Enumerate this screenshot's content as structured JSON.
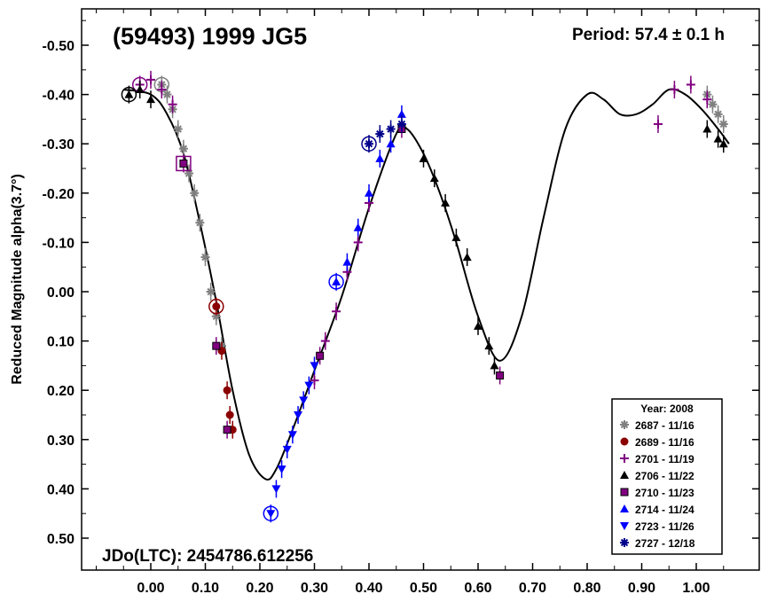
{
  "chart_data": {
    "type": "scatter",
    "title": "(59493) 1999 JG5",
    "period_text": "Period: 57.4 ± 0.1 h",
    "epoch_text": "JDo(LTC): 2454786.612256",
    "ylabel": "Reduced Magnitude alpha(3.7°)",
    "xlabel": "",
    "xlim": [
      -0.1,
      1.08
    ],
    "ylim": [
      -0.55,
      0.51
    ],
    "y_inverted": true,
    "x_ticks": [
      "0.00",
      "0.10",
      "0.20",
      "0.30",
      "0.40",
      "0.50",
      "0.60",
      "0.70",
      "0.80",
      "0.90",
      "1.00"
    ],
    "y_ticks": [
      "-0.50",
      "-0.40",
      "-0.30",
      "-0.20",
      "-0.10",
      "0.00",
      "0.10",
      "0.20",
      "0.30",
      "0.40",
      "0.50"
    ],
    "legend": {
      "title": "Year: 2008",
      "placement": "bottom-right",
      "entries": [
        {
          "label": "2687 - 11/16",
          "color": "#808080",
          "marker": "asterisk"
        },
        {
          "label": "2689 - 11/16",
          "color": "#8b0000",
          "marker": "circle"
        },
        {
          "label": "2701 - 11/19",
          "color": "#800080",
          "marker": "plus"
        },
        {
          "label": "2706 - 11/22",
          "color": "#000000",
          "marker": "triangle"
        },
        {
          "label": "2710 - 11/23",
          "color": "#800080",
          "marker": "square"
        },
        {
          "label": "2714 - 11/24",
          "color": "#0000ff",
          "marker": "triangle"
        },
        {
          "label": "2723 - 11/26",
          "color": "#0000ff",
          "marker": "triangle-down"
        },
        {
          "label": "2727 - 12/18",
          "color": "#00008b",
          "marker": "asterisk"
        }
      ]
    },
    "fit_curve": {
      "x": [
        -0.05,
        0.0,
        0.03,
        0.06,
        0.09,
        0.12,
        0.15,
        0.18,
        0.21,
        0.23,
        0.26,
        0.3,
        0.35,
        0.4,
        0.45,
        0.47,
        0.5,
        0.53,
        0.56,
        0.6,
        0.64,
        0.68,
        0.72,
        0.76,
        0.8,
        0.83,
        0.86,
        0.89,
        0.92,
        0.95,
        0.98,
        1.01,
        1.04,
        1.06
      ],
      "y": [
        -0.41,
        -0.4,
        -0.36,
        -0.28,
        -0.14,
        0.02,
        0.2,
        0.33,
        0.38,
        0.36,
        0.28,
        0.16,
        0.01,
        -0.17,
        -0.32,
        -0.33,
        -0.28,
        -0.2,
        -0.1,
        0.05,
        0.14,
        0.05,
        -0.15,
        -0.33,
        -0.4,
        -0.39,
        -0.36,
        -0.36,
        -0.38,
        -0.41,
        -0.4,
        -0.37,
        -0.33,
        -0.3
      ]
    },
    "series": [
      {
        "name": "2687 - 11/16",
        "x": [
          0.02,
          0.03,
          0.04,
          0.05,
          0.06,
          0.07,
          0.08,
          0.09,
          0.1,
          0.11,
          0.12,
          0.13,
          1.02,
          1.03,
          1.04,
          1.05
        ],
        "y": [
          -0.42,
          -0.4,
          -0.37,
          -0.33,
          -0.29,
          -0.24,
          -0.2,
          -0.14,
          -0.07,
          0.0,
          0.05,
          0.11,
          -0.4,
          -0.38,
          -0.36,
          -0.34
        ]
      },
      {
        "name": "2689 - 11/16",
        "x": [
          0.12,
          0.13,
          0.14,
          0.145,
          0.15
        ],
        "y": [
          0.03,
          0.12,
          0.2,
          0.25,
          0.28
        ]
      },
      {
        "name": "2701 - 11/19",
        "x": [
          -0.02,
          0.0,
          0.02,
          0.04,
          0.3,
          0.32,
          0.34,
          0.36,
          0.38,
          0.4,
          0.93,
          0.96,
          0.99,
          1.02
        ],
        "y": [
          -0.42,
          -0.43,
          -0.41,
          -0.38,
          0.18,
          0.1,
          0.04,
          -0.04,
          -0.1,
          -0.18,
          -0.34,
          -0.41,
          -0.42,
          -0.39
        ]
      },
      {
        "name": "2706 - 11/22",
        "x": [
          -0.04,
          -0.02,
          0.0,
          0.5,
          0.52,
          0.54,
          0.56,
          0.58,
          0.6,
          0.62,
          0.63,
          1.02,
          1.04,
          1.05
        ],
        "y": [
          -0.4,
          -0.41,
          -0.39,
          -0.27,
          -0.23,
          -0.18,
          -0.11,
          -0.07,
          0.07,
          0.11,
          0.15,
          -0.33,
          -0.31,
          -0.3
        ]
      },
      {
        "name": "2710 - 11/23",
        "x": [
          0.06,
          0.12,
          0.14,
          0.31,
          0.46,
          0.64
        ],
        "y": [
          -0.26,
          0.11,
          0.28,
          0.13,
          -0.33,
          0.17
        ]
      },
      {
        "name": "2714 - 11/24",
        "x": [
          0.34,
          0.36,
          0.38,
          0.4,
          0.42,
          0.44,
          0.46
        ],
        "y": [
          -0.02,
          -0.06,
          -0.13,
          -0.2,
          -0.27,
          -0.3,
          -0.36
        ]
      },
      {
        "name": "2723 - 11/26",
        "x": [
          0.22,
          0.23,
          0.24,
          0.25,
          0.26,
          0.27,
          0.28,
          0.29,
          0.3
        ],
        "y": [
          0.45,
          0.4,
          0.36,
          0.32,
          0.29,
          0.25,
          0.22,
          0.19,
          0.15
        ]
      },
      {
        "name": "2727 - 12/18",
        "x": [
          0.4,
          0.42,
          0.44,
          0.46
        ],
        "y": [
          -0.3,
          -0.32,
          -0.33,
          -0.34
        ]
      }
    ]
  }
}
